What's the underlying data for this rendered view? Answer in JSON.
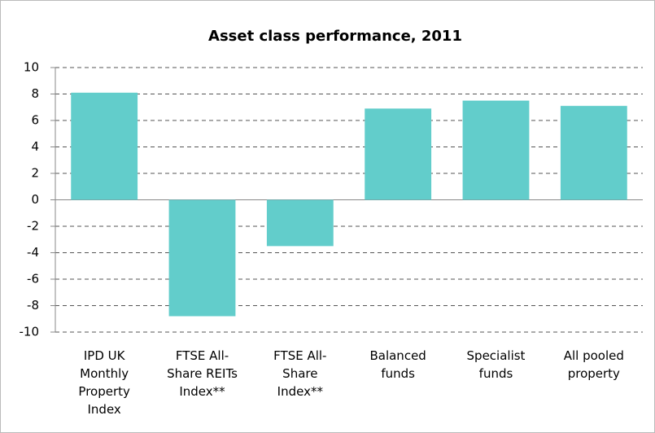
{
  "chart_data": {
    "type": "bar",
    "title": "Asset class performance, 2011",
    "categories": [
      "IPD UK Monthly Property Index",
      "FTSE All-Share REITs Index**",
      "FTSE All-Share Index**",
      "Balanced funds",
      "Specialist funds",
      "All pooled property"
    ],
    "values": [
      8.1,
      -8.8,
      -3.5,
      6.9,
      7.5,
      7.1
    ],
    "color": "#62cdcb",
    "ylim": [
      -10,
      10
    ],
    "yticks": [
      -10,
      -8,
      -6,
      -4,
      -2,
      0,
      2,
      4,
      6,
      8,
      10
    ],
    "grid": true
  }
}
